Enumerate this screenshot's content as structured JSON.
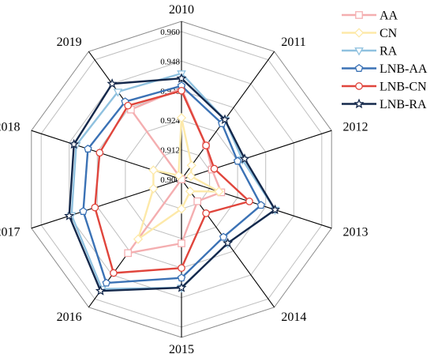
{
  "chart_data": {
    "type": "radar",
    "categories": [
      "2010",
      "2011",
      "2012",
      "2013",
      "2014",
      "2015",
      "2016",
      "2017",
      "2018",
      "2019"
    ],
    "radial_ticks": [
      "0.900",
      "0.912",
      "0.924",
      "0.936",
      "0.948",
      "0.960"
    ],
    "rlim": [
      0.9,
      0.96
    ],
    "grid": true,
    "legend_position": "top-right",
    "series": [
      {
        "name": "AA",
        "color": "#f4aeb0",
        "marker": "square",
        "values": [
          0.937,
          0.917,
          0.913,
          0.917,
          0.911,
          0.926,
          0.937,
          0.9,
          0.9,
          0.935
        ]
      },
      {
        "name": "CN",
        "color": "#fde9a9",
        "marker": "diamond",
        "values": [
          0.925,
          0.907,
          0.904,
          0.916,
          0.906,
          0.912,
          0.93,
          0.912,
          0.912,
          0.902
        ]
      },
      {
        "name": "RA",
        "color": "#8fc1df",
        "marker": "triangle-down",
        "values": [
          0.943,
          0.93,
          0.926,
          0.94,
          0.932,
          0.944,
          0.955,
          0.947,
          0.945,
          0.944
        ]
      },
      {
        "name": "LNB-AA",
        "color": "#3b72b5",
        "marker": "pentagon",
        "values": [
          0.938,
          0.928,
          0.924,
          0.934,
          0.929,
          0.94,
          0.952,
          0.942,
          0.94,
          0.939
        ]
      },
      {
        "name": "LNB-CN",
        "color": "#e0453c",
        "marker": "circle",
        "values": [
          0.936,
          0.917,
          0.914,
          0.929,
          0.917,
          0.936,
          0.947,
          0.937,
          0.935,
          0.937
        ]
      },
      {
        "name": "LNB-RA",
        "color": "#14284b",
        "marker": "star",
        "values": [
          0.941,
          0.93,
          0.927,
          0.94,
          0.932,
          0.944,
          0.956,
          0.948,
          0.946,
          0.948
        ]
      }
    ]
  }
}
